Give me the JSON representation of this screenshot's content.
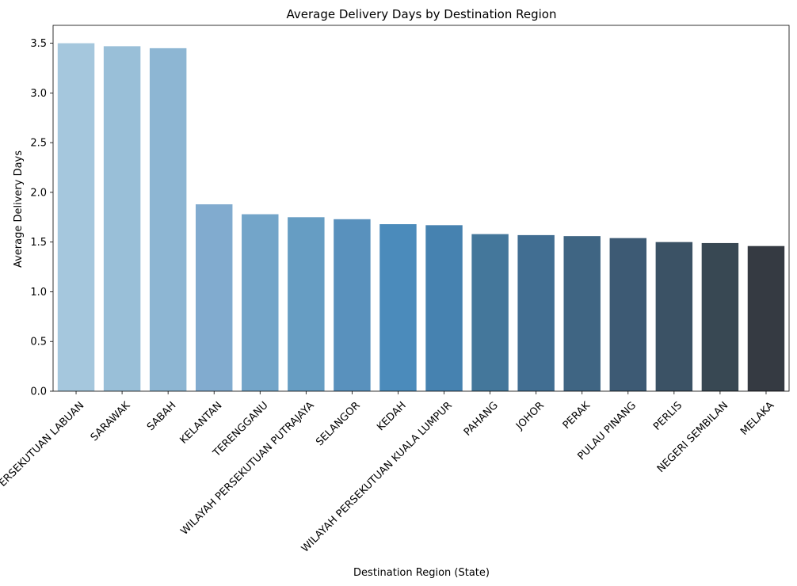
{
  "chart_data": {
    "type": "bar",
    "title": "Average Delivery Days by Destination Region",
    "xlabel": "Destination Region (State)",
    "ylabel": "Average Delivery Days",
    "ylim": [
      0,
      3.68
    ],
    "yticks": [
      0.0,
      0.5,
      1.0,
      1.5,
      2.0,
      2.5,
      3.0,
      3.5
    ],
    "ytick_labels": [
      "0.0",
      "0.5",
      "1.0",
      "1.5",
      "2.0",
      "2.5",
      "3.0",
      "3.5"
    ],
    "grid": false,
    "legend": "none",
    "categories": [
      "WILAYAH PERSEKUTUAN LABUAN",
      "SARAWAK",
      "SABAH",
      "KELANTAN",
      "TERENGGANU",
      "WILAYAH PERSEKUTUAN PUTRAJAYA",
      "SELANGOR",
      "KEDAH",
      "WILAYAH PERSEKUTUAN KUALA LUMPUR",
      "PAHANG",
      "JOHOR",
      "PERAK",
      "PULAU PINANG",
      "PERLIS",
      "NEGERI SEMBILAN",
      "MELAKA"
    ],
    "values": [
      3.5,
      3.47,
      3.45,
      1.88,
      1.78,
      1.75,
      1.73,
      1.68,
      1.67,
      1.58,
      1.57,
      1.56,
      1.54,
      1.5,
      1.49,
      1.46
    ],
    "colors": [
      "#a5c7dd",
      "#99bfd8",
      "#8db6d3",
      "#81abcf",
      "#73a5c9",
      "#669dc3",
      "#5991bd",
      "#4b8bbb",
      "#4682b0",
      "#44779b",
      "#416e92",
      "#3f6583",
      "#3d5a74",
      "#3b5265",
      "#384853",
      "#353a42"
    ]
  }
}
